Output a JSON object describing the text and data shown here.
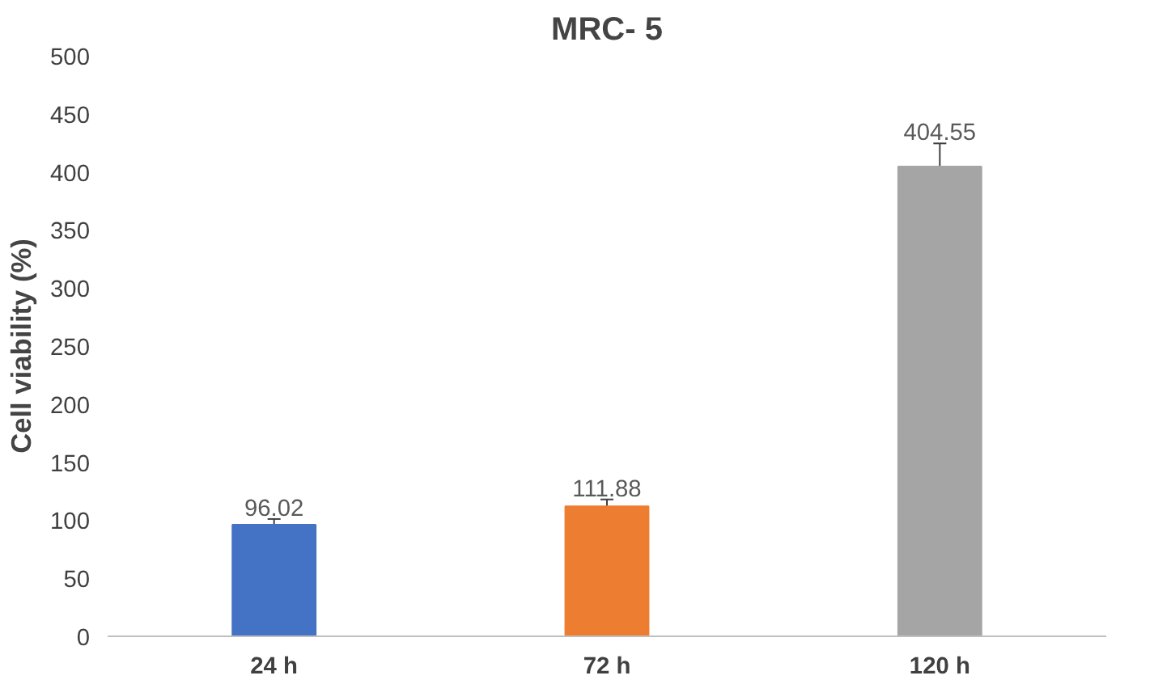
{
  "chart_data": {
    "type": "bar",
    "title": "MRC- 5",
    "ylabel": "Cell viability (%)",
    "categories": [
      "24 h",
      "72 h",
      "120 h"
    ],
    "values": [
      96.02,
      111.88,
      404.55
    ],
    "colors": [
      "#4472c4",
      "#ed7d31",
      "#a5a5a5"
    ],
    "errors": [
      5,
      6,
      20
    ],
    "data_labels": true,
    "ylim": [
      0,
      500
    ],
    "yticks": [
      0,
      50,
      100,
      150,
      200,
      250,
      300,
      350,
      400,
      450,
      500
    ],
    "grid": false
  }
}
